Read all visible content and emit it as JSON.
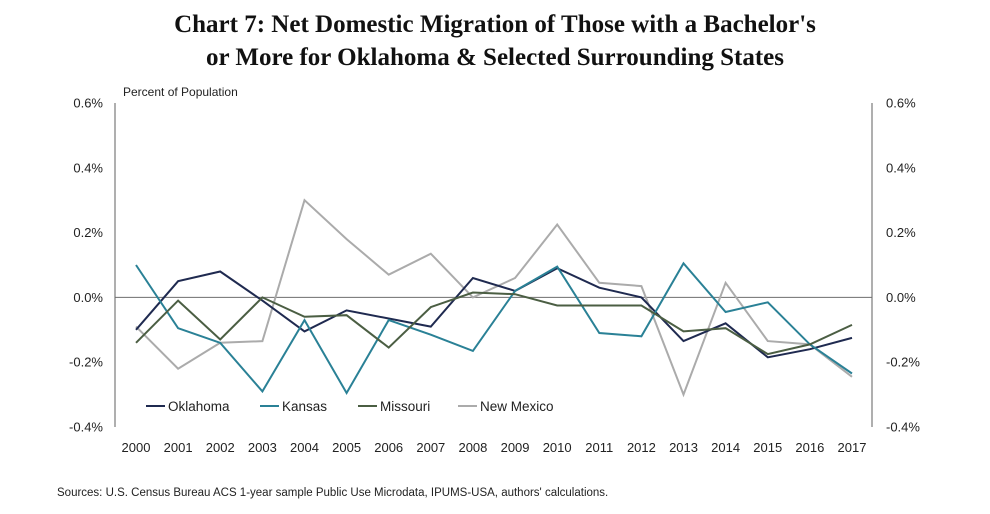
{
  "title_line1": "Chart 7: Net Domestic Migration of Those with a Bachelor's",
  "title_line2": "or More for Oklahoma & Selected Surrounding States",
  "source": "Sources: U.S. Census Bureau ACS 1-year sample Public Use Microdata, IPUMS-USA, authors' calculations.",
  "chart_data": {
    "type": "line",
    "title": "Chart 7: Net Domestic Migration of Those with a Bachelor's or More for Oklahoma & Selected Surrounding States",
    "ylabel": "Percent of Population",
    "xlabel": "",
    "x": [
      "2000",
      "2001",
      "2002",
      "2003",
      "2004",
      "2005",
      "2006",
      "2007",
      "2008",
      "2009",
      "2010",
      "2011",
      "2012",
      "2013",
      "2014",
      "2015",
      "2016",
      "2017"
    ],
    "ylim": [
      -0.4,
      0.6
    ],
    "yticks": [
      "0.6%",
      "0.4%",
      "0.2%",
      "0.0%",
      "-0.2%",
      "-0.4%"
    ],
    "ytick_values": [
      0.6,
      0.4,
      0.2,
      0.0,
      -0.2,
      -0.4
    ],
    "dual_axis_same_scale": true,
    "grid": false,
    "zero_line": true,
    "legend_position": "bottom-left inside plot",
    "series": [
      {
        "name": "Oklahoma",
        "color": "#1f2a50",
        "values": [
          -0.1,
          0.05,
          0.08,
          -0.01,
          -0.105,
          -0.04,
          -0.065,
          -0.09,
          0.06,
          0.02,
          0.09,
          0.03,
          0.0,
          -0.135,
          -0.08,
          -0.185,
          -0.16,
          -0.125
        ]
      },
      {
        "name": "Kansas",
        "color": "#2a8196",
        "values": [
          0.1,
          -0.095,
          -0.14,
          -0.29,
          -0.07,
          -0.295,
          -0.07,
          -0.115,
          -0.165,
          0.02,
          0.095,
          -0.11,
          -0.12,
          0.105,
          -0.045,
          -0.015,
          -0.145,
          -0.235
        ]
      },
      {
        "name": "Missouri",
        "color": "#4b5e43",
        "values": [
          -0.14,
          -0.01,
          -0.13,
          0.0,
          -0.06,
          -0.055,
          -0.155,
          -0.03,
          0.015,
          0.01,
          -0.025,
          -0.025,
          -0.025,
          -0.105,
          -0.095,
          -0.175,
          -0.145,
          -0.085
        ]
      },
      {
        "name": "New Mexico",
        "color": "#ababab",
        "values": [
          -0.09,
          -0.22,
          -0.14,
          -0.135,
          0.3,
          0.18,
          0.07,
          0.135,
          0.0,
          0.06,
          0.225,
          0.045,
          0.035,
          -0.3,
          0.045,
          -0.135,
          -0.145,
          -0.245
        ]
      }
    ]
  }
}
